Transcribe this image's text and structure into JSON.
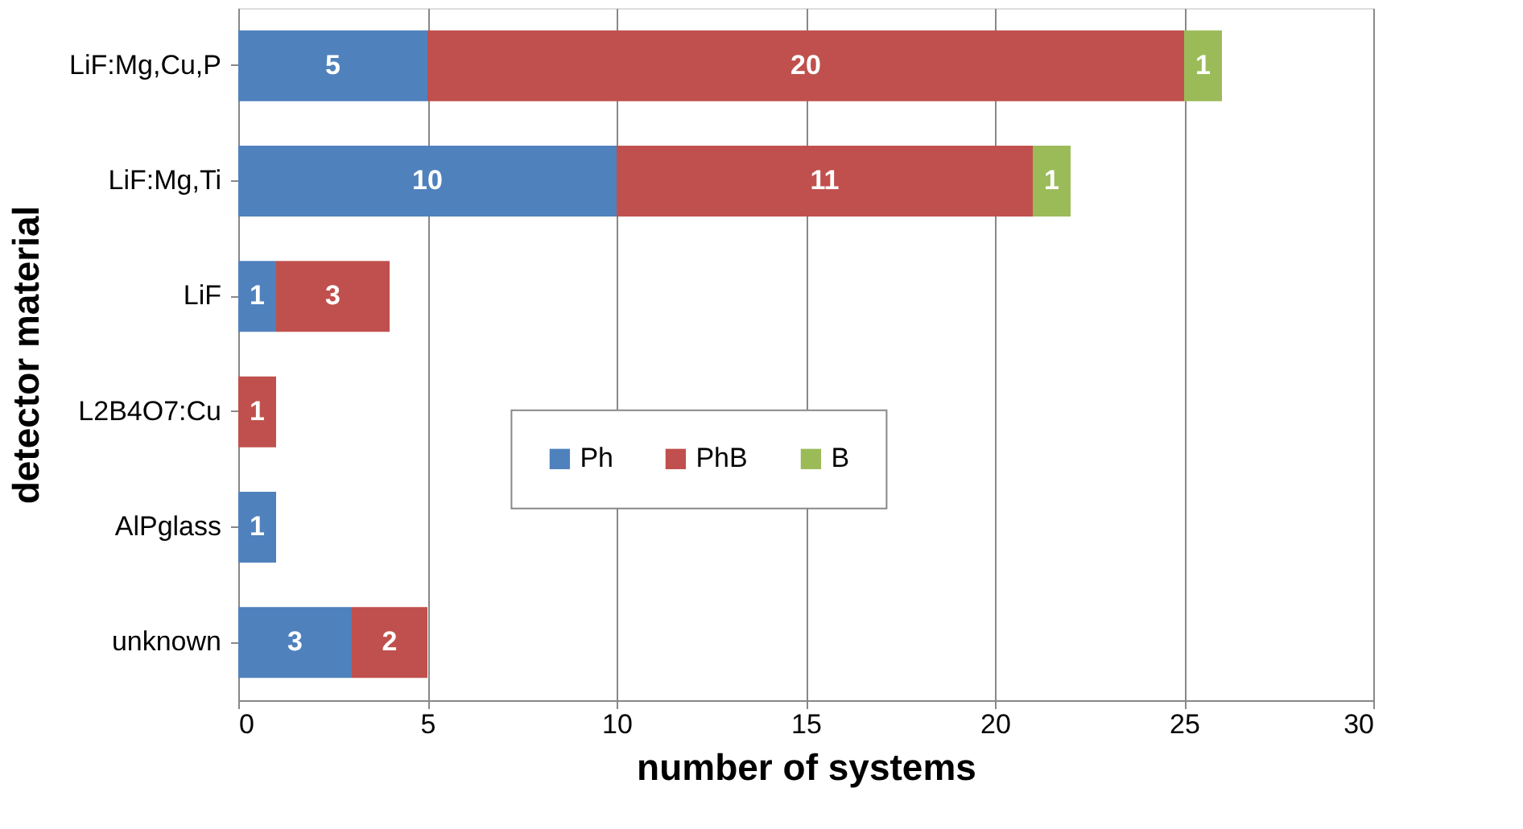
{
  "chart_data": {
    "type": "bar",
    "orientation": "horizontal",
    "stacked": true,
    "xlabel": "number of systems",
    "ylabel": "detector material",
    "categories": [
      "LiF:Mg,Cu,P",
      "LiF:Mg,Ti",
      "LiF",
      "L2B4O7:Cu",
      "AlPglass",
      "unknown"
    ],
    "series": [
      {
        "name": "Ph",
        "color": "#4f81bd",
        "values": [
          5,
          10,
          1,
          null,
          1,
          3
        ]
      },
      {
        "name": "PhB",
        "color": "#c0504d",
        "values": [
          20,
          11,
          3,
          1,
          null,
          2
        ]
      },
      {
        "name": "B",
        "color": "#9bbb59",
        "values": [
          1,
          1,
          null,
          null,
          null,
          null
        ]
      }
    ],
    "xlim": [
      0,
      30
    ],
    "xticks": [
      0,
      5,
      10,
      15,
      20,
      25,
      30
    ],
    "grid": "x",
    "legend": "center",
    "data_labels": true
  }
}
